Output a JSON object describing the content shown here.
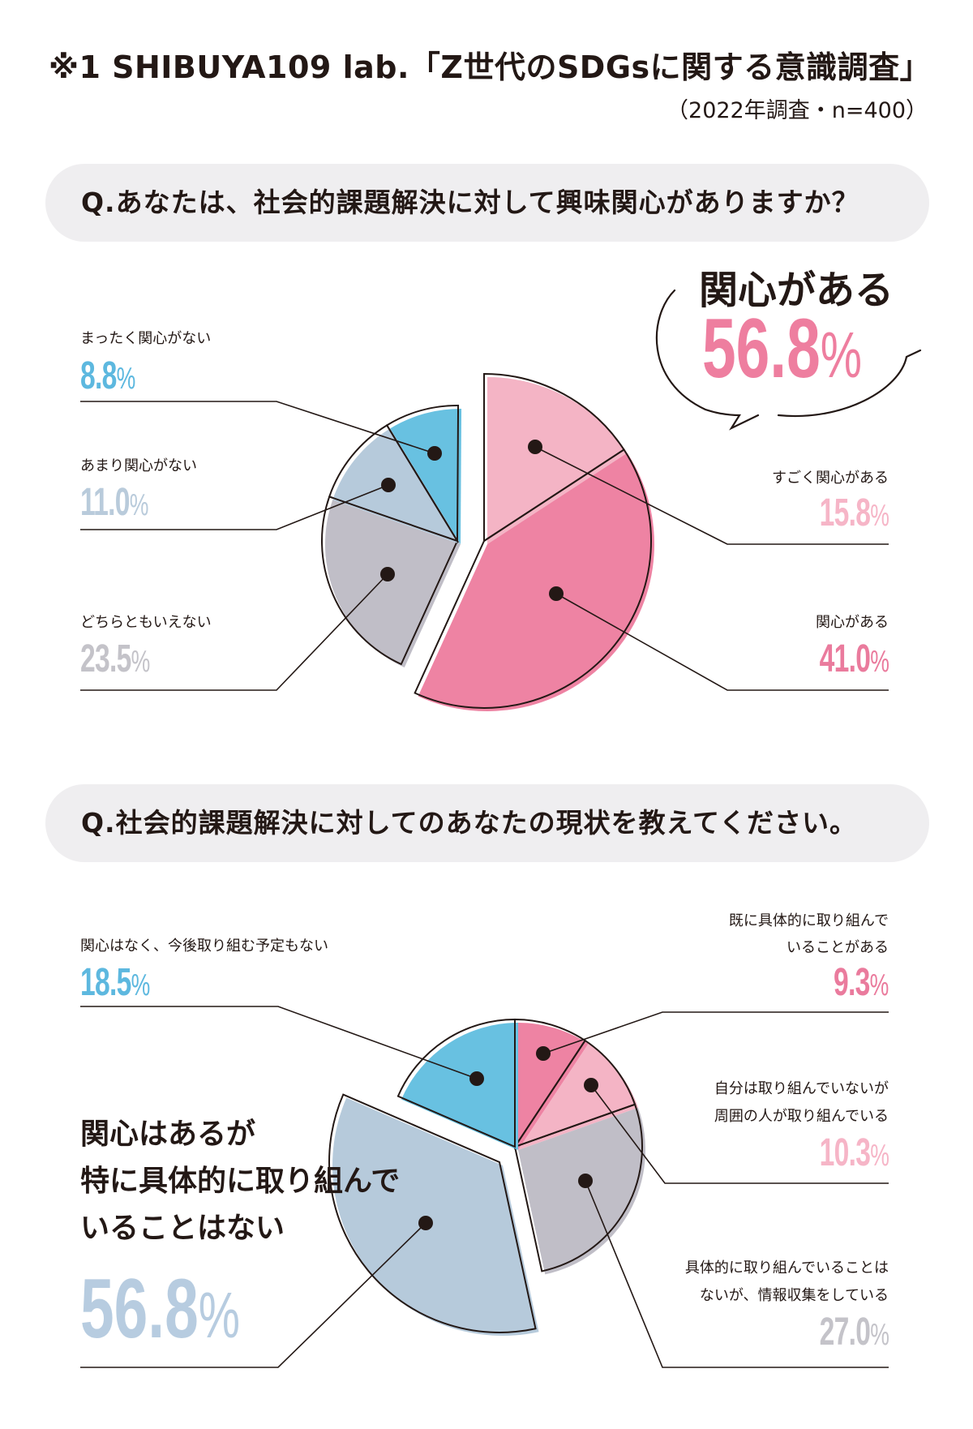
{
  "header": {
    "title": "※1 SHIBUYA109 lab.「Z世代のSDGsに関する意識調査」",
    "subtitle": "（2022年調査・n=400）"
  },
  "percent_unit": "%",
  "colors": {
    "blue": "#68c1e1",
    "light_blue": "#b6cadb",
    "gray": "#c0bec7",
    "light_pink": "#f4b4c5",
    "pink": "#ee83a3",
    "text_blue": "#5db8df",
    "text_light_blue": "#b9cbdb",
    "text_gray": "#c4c3c9",
    "text_light_pink": "#f6b5c7",
    "text_pink": "#ea7b9d",
    "outline": "#231815"
  },
  "chart_data": [
    {
      "type": "pie",
      "title": "Q.あなたは、社会的課題解決に対して興味関心がありますか？",
      "callout": {
        "label": "関心がある",
        "value": "56.8"
      },
      "slices": [
        {
          "label": "すごく関心がある",
          "value": 15.8,
          "color": "#f4b4c5",
          "text_color": "#f6b5c7"
        },
        {
          "label": "関心がある",
          "value": 41.0,
          "color": "#ee83a3",
          "text_color": "#ea7b9d"
        },
        {
          "label": "どちらともいえない",
          "value": 23.5,
          "color": "#c0bec7",
          "text_color": "#c4c3c9"
        },
        {
          "label": "あまり関心がない",
          "value": 11.0,
          "color": "#b6cadb",
          "text_color": "#b9cbdb"
        },
        {
          "label": "まったく関心がない",
          "value": 8.8,
          "color": "#68c1e1",
          "text_color": "#5db8df"
        }
      ]
    },
    {
      "type": "pie",
      "title": "Q.社会的課題解決に対してのあなたの現状を教えてください。",
      "slices": [
        {
          "label": "既に具体的に取り組んでいることがある",
          "label_lines": [
            "既に具体的に取り組んで",
            "いることがある"
          ],
          "value": 9.3,
          "color": "#ee83a3",
          "text_color": "#ea7b9d"
        },
        {
          "label": "自分は取り組んでいないが周囲の人が取り組んでいる",
          "label_lines": [
            "自分は取り組んでいないが",
            "周囲の人が取り組んでいる"
          ],
          "value": 10.3,
          "color": "#f4b4c5",
          "text_color": "#f6b5c7"
        },
        {
          "label": "具体的に取り組んでいることはないが、情報収集をしている",
          "label_lines": [
            "具体的に取り組んでいることは",
            "ないが、情報収集をしている"
          ],
          "value": 27.0,
          "color": "#c0bec7",
          "text_color": "#c4c3c9"
        },
        {
          "label": "関心はあるが特に具体的に取り組んでいることはない",
          "label_lines": [
            "関心はあるが",
            "特に具体的に取り組んで",
            "いることはない"
          ],
          "value": 56.8,
          "color": "#b6cadb",
          "text_color": "#b7cce0"
        },
        {
          "label": "関心はなく、今後取り組む予定もない",
          "label_lines": [
            "関心はなく、今後取り組む予定もない"
          ],
          "value": 18.5,
          "color": "#68c1e1",
          "text_color": "#5db8df"
        }
      ]
    }
  ]
}
